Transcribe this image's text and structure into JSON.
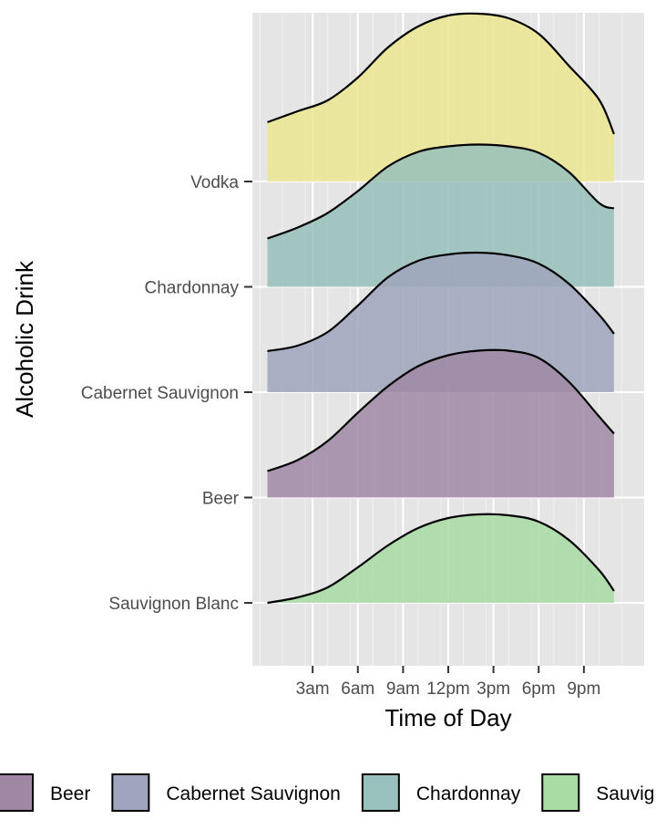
{
  "chart_data": {
    "type": "ridgeline",
    "xlabel": "Time of Day",
    "ylabel": "Alcoholic Drink",
    "x_ticks": [
      {
        "hour": 3,
        "label": "3am"
      },
      {
        "hour": 6,
        "label": "6am"
      },
      {
        "hour": 9,
        "label": "9am"
      },
      {
        "hour": 12,
        "label": "12pm"
      },
      {
        "hour": 15,
        "label": "3pm"
      },
      {
        "hour": 18,
        "label": "6pm"
      },
      {
        "hour": 21,
        "label": "9pm"
      }
    ],
    "xlim": [
      -1,
      25
    ],
    "x_minor_step_hours": 1.5,
    "density_x_hours": [
      0,
      2,
      4,
      6,
      8,
      10,
      12,
      14,
      16,
      18,
      20,
      22,
      23
    ],
    "grid": true,
    "legend_position": "bottom",
    "series": [
      {
        "name": "Sauvignon Blanc",
        "color": "#a8dca4",
        "density": [
          0.0,
          0.6,
          1.7,
          3.9,
          6.3,
          8.2,
          9.3,
          9.7,
          9.6,
          8.9,
          6.9,
          3.6,
          1.3
        ]
      },
      {
        "name": "Beer",
        "color": "#a088a4",
        "density": [
          2.9,
          4.1,
          6.2,
          9.3,
          12.2,
          14.4,
          15.6,
          16.1,
          16.1,
          15.3,
          12.7,
          8.9,
          7.0
        ]
      },
      {
        "name": "Cabernet Sauvignon",
        "color": "#a0a4bc",
        "density": [
          4.5,
          5.1,
          6.6,
          9.5,
          12.6,
          14.4,
          15.1,
          15.3,
          15.0,
          14.1,
          11.9,
          8.5,
          6.4
        ]
      },
      {
        "name": "Chardonnay",
        "color": "#98c0bc",
        "density": [
          5.3,
          6.5,
          8.1,
          10.5,
          13.2,
          14.8,
          15.4,
          15.6,
          15.4,
          14.7,
          12.6,
          9.2,
          8.6
        ]
      },
      {
        "name": "Vodka",
        "color": "#ece690",
        "density": [
          6.5,
          7.7,
          8.9,
          11.4,
          14.7,
          17.0,
          18.2,
          18.4,
          17.9,
          16.2,
          12.7,
          9.0,
          5.2
        ]
      }
    ],
    "legend_order": [
      "Beer",
      "Cabernet Sauvignon",
      "Chardonnay",
      "Sauvignon Blanc",
      "Vodka"
    ]
  }
}
